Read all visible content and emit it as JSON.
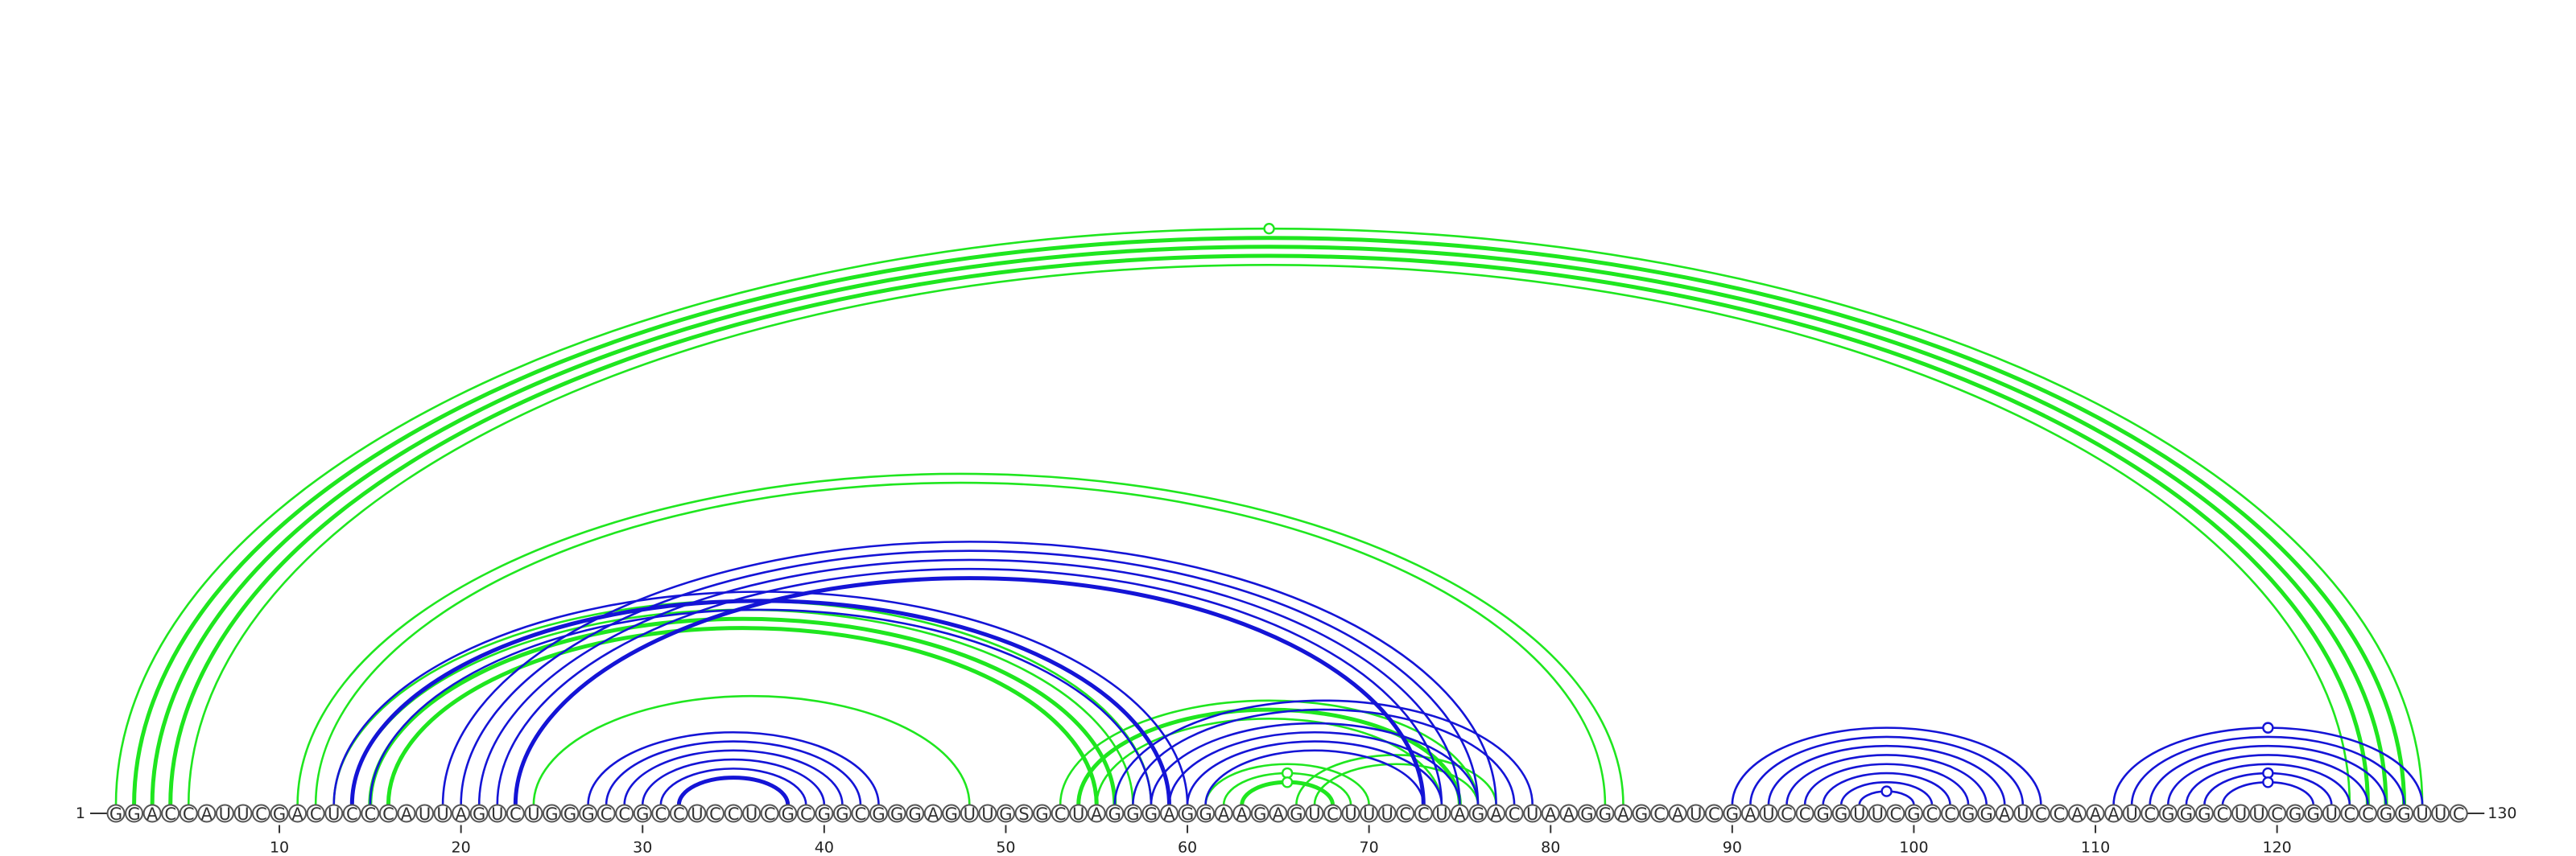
{
  "sequence": "GGACCAUUCGACUCCCAUUAGUCUGGGCCGCCUCCUCGCGGCGGGAGUUGSGCUAGGGAGGAAGAGUCUUUCCUAGACUAAGGAGCAUCGAUCCGGUUCGCCGGAUCCAAAUCGGGCUUCGGUCCGGUUC",
  "start_label": "1",
  "end_label": "130",
  "tick_labels": [
    "10",
    "20",
    "30",
    "40",
    "50",
    "60",
    "70",
    "80",
    "90",
    "100",
    "110",
    "120"
  ],
  "colors": {
    "green": "#1fe61f",
    "blue": "#1414d6",
    "nucleotide_stroke": "#555555",
    "text": "#222222"
  },
  "green_arcs": [
    [
      1,
      128,
      "thin"
    ],
    [
      2,
      127,
      "thick"
    ],
    [
      3,
      126,
      "thick"
    ],
    [
      4,
      125,
      "thick"
    ],
    [
      5,
      124,
      "thin"
    ],
    [
      11,
      84,
      "thin"
    ],
    [
      12,
      83,
      "thin"
    ],
    [
      13,
      58,
      "thin"
    ],
    [
      14,
      57,
      "thin"
    ],
    [
      15,
      56,
      "thick"
    ],
    [
      16,
      55,
      "thick"
    ],
    [
      24,
      48,
      "thin"
    ],
    [
      53,
      76,
      "thin"
    ],
    [
      54,
      75,
      "thick"
    ],
    [
      55,
      74,
      "thin"
    ],
    [
      61,
      70,
      "thin"
    ],
    [
      62,
      69,
      "thin"
    ],
    [
      63,
      68,
      "thick"
    ],
    [
      66,
      77,
      "thin"
    ],
    [
      67,
      76,
      "thin"
    ]
  ],
  "blue_arcs": [
    [
      13,
      60,
      "thin"
    ],
    [
      14,
      59,
      "thick"
    ],
    [
      15,
      58,
      "thin"
    ],
    [
      19,
      77,
      "thin"
    ],
    [
      20,
      76,
      "thin"
    ],
    [
      21,
      75,
      "thin"
    ],
    [
      22,
      74,
      "thin"
    ],
    [
      23,
      73,
      "thick"
    ],
    [
      27,
      43,
      "thin"
    ],
    [
      28,
      42,
      "thin"
    ],
    [
      29,
      41,
      "thin"
    ],
    [
      30,
      40,
      "thin"
    ],
    [
      31,
      39,
      "thin"
    ],
    [
      32,
      38,
      "thick"
    ],
    [
      56,
      79,
      "thin"
    ],
    [
      57,
      78,
      "thin"
    ],
    [
      58,
      76,
      "thin"
    ],
    [
      59,
      75,
      "thin"
    ],
    [
      60,
      74,
      "thin"
    ],
    [
      61,
      73,
      "thin"
    ],
    [
      90,
      107,
      "thin"
    ],
    [
      91,
      106,
      "thin"
    ],
    [
      92,
      105,
      "thin"
    ],
    [
      93,
      104,
      "thin"
    ],
    [
      94,
      103,
      "thin"
    ],
    [
      95,
      102,
      "thin"
    ],
    [
      96,
      101,
      "thin"
    ],
    [
      97,
      100,
      "thin"
    ],
    [
      111,
      128,
      "thin"
    ],
    [
      112,
      127,
      "thin"
    ],
    [
      113,
      126,
      "thin"
    ],
    [
      114,
      125,
      "thin"
    ],
    [
      115,
      124,
      "thin"
    ],
    [
      116,
      123,
      "thin"
    ],
    [
      117,
      122,
      "thin"
    ]
  ],
  "arc_markers": [
    [
      "green",
      1,
      128
    ],
    [
      "green",
      62,
      69
    ],
    [
      "green",
      63,
      68
    ],
    [
      "blue",
      97,
      100
    ],
    [
      "blue",
      111,
      128
    ],
    [
      "blue",
      116,
      123
    ],
    [
      "blue",
      117,
      122
    ]
  ]
}
